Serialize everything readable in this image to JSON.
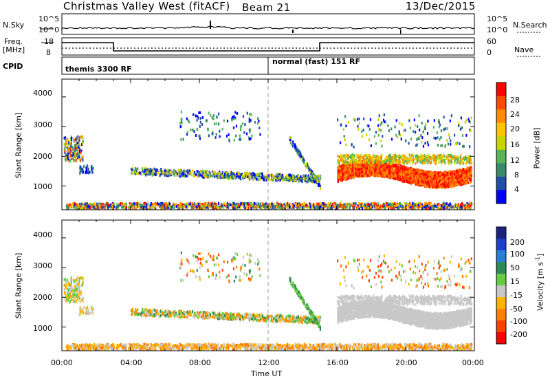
{
  "header": {
    "station": "Christmas Valley West (fitACF)",
    "beam": "Beam 21",
    "date": "13/Dec/2015"
  },
  "top_panel": {
    "left_label": "N.Sky",
    "left_ticks": [
      "10^5",
      "10^0"
    ],
    "right_label": "N.Search",
    "right_ticks": [
      "10^5",
      "10^0"
    ]
  },
  "freq_panel": {
    "left_label_1": "Freq.",
    "left_label_2": "[MHz]",
    "left_ticks": [
      "18",
      "8"
    ],
    "right_label": "Nave",
    "right_ticks": [
      "60",
      "0"
    ]
  },
  "cpid": {
    "label": "CPID",
    "segments": [
      "themis 3300 RF",
      "normal (fast) 151 RF"
    ]
  },
  "colorbars": {
    "power": {
      "label": "Power [dB]",
      "ticks": [
        "28",
        "24",
        "20",
        "16",
        "12",
        "8",
        "4"
      ],
      "colors": [
        "#ff0000",
        "#ff4a00",
        "#ff8c00",
        "#ffc300",
        "#c9d400",
        "#57b557",
        "#3a8a6a",
        "#1f4fa8",
        "#0000ff"
      ]
    },
    "velocity": {
      "label": "Velocity [m s",
      "label_sup": "-1",
      "label_end": "]",
      "ticks": [
        "200",
        "100",
        "50",
        "15",
        "-15",
        "-50",
        "-100",
        "-200"
      ],
      "colors": [
        "#1a237e",
        "#1e40c8",
        "#2a7fd4",
        "#2e8b57",
        "#66cc44",
        "#c8c8c8",
        "#ffb300",
        "#ff8000",
        "#ff4000",
        "#ff0000"
      ]
    }
  },
  "chart_data": [
    {
      "type": "heatmap",
      "name": "power",
      "ylabel": "Slant Range [km]",
      "ylim": [
        200,
        4600
      ],
      "yticks": [
        "4000",
        "3000",
        "2000",
        "1000"
      ],
      "xlim": [
        0,
        24
      ],
      "xticks": [
        "00:00",
        "04:00",
        "08:00",
        "12:00",
        "16:00",
        "20:00",
        "00:00"
      ]
    },
    {
      "type": "heatmap",
      "name": "velocity",
      "ylabel": "Slant Range [km]",
      "ylim": [
        200,
        4600
      ],
      "yticks": [
        "4000",
        "3000",
        "2000",
        "1000"
      ],
      "xlim": [
        0,
        24
      ],
      "xlabel": "Time UT",
      "xticks": [
        "00:00",
        "04:00",
        "08:00",
        "12:00",
        "16:00",
        "20:00",
        "00:00"
      ]
    }
  ]
}
